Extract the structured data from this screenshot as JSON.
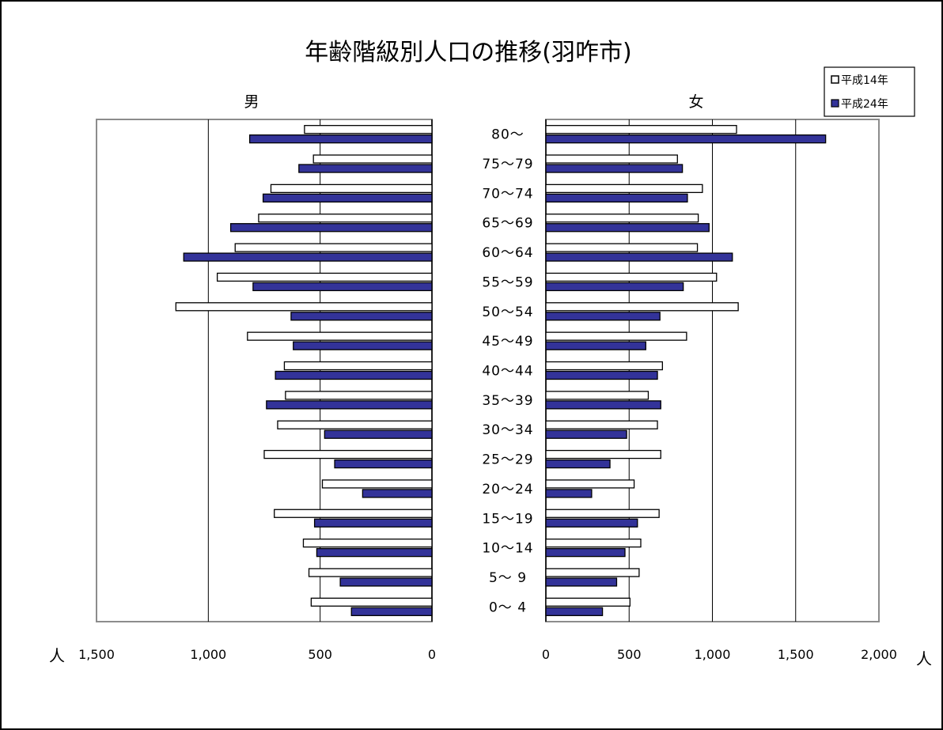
{
  "chart_data": {
    "type": "bar",
    "orientation": "horizontal",
    "layout": "population-pyramid",
    "title": "年齢階級別人口の推移(羽咋市)",
    "categories": [
      "80～",
      "75～79",
      "70～74",
      "65～69",
      "60～64",
      "55～59",
      "50～54",
      "45～49",
      "40～44",
      "35～39",
      "30～34",
      "25～29",
      "20～24",
      "15～19",
      "10～14",
      "5～ 9",
      "0～ 4"
    ],
    "series_style": [
      {
        "name": "平成14年",
        "color": "#ffffff"
      },
      {
        "name": "平成24年",
        "color": "#333399"
      }
    ],
    "legend_position": "top-right",
    "grid": true,
    "unit_left": "人",
    "unit_right": "人",
    "panels": [
      {
        "label": "男",
        "direction": "leftward",
        "xlim": [
          0,
          1500
        ],
        "tick_values": [
          1500,
          1000,
          500,
          0
        ],
        "tick_labels": [
          "1,500",
          "1,000",
          "500",
          "0"
        ],
        "series": [
          {
            "name": "平成14年",
            "values": [
              570,
              530,
              720,
              775,
              880,
              960,
              1145,
              825,
              660,
              655,
              690,
              750,
              490,
              705,
              575,
              550,
              540
            ]
          },
          {
            "name": "平成24年",
            "values": [
              815,
              595,
              755,
              900,
              1110,
              800,
              630,
              620,
              700,
              740,
              480,
              435,
              310,
              525,
              515,
              410,
              360
            ]
          }
        ]
      },
      {
        "label": "女",
        "direction": "rightward",
        "xlim": [
          0,
          2000
        ],
        "tick_values": [
          0,
          500,
          1000,
          1500,
          2000
        ],
        "tick_labels": [
          "0",
          "500",
          "1,000",
          "1,500",
          "2,000"
        ],
        "series": [
          {
            "name": "平成14年",
            "values": [
              1145,
              790,
              940,
              915,
              910,
              1025,
              1155,
              845,
              700,
              615,
              670,
              690,
              530,
              680,
              570,
              560,
              505
            ]
          },
          {
            "name": "平成24年",
            "values": [
              1680,
              820,
              850,
              980,
              1120,
              825,
              685,
              600,
              670,
              690,
              485,
              385,
              275,
              550,
              475,
              425,
              340
            ]
          }
        ]
      }
    ]
  }
}
